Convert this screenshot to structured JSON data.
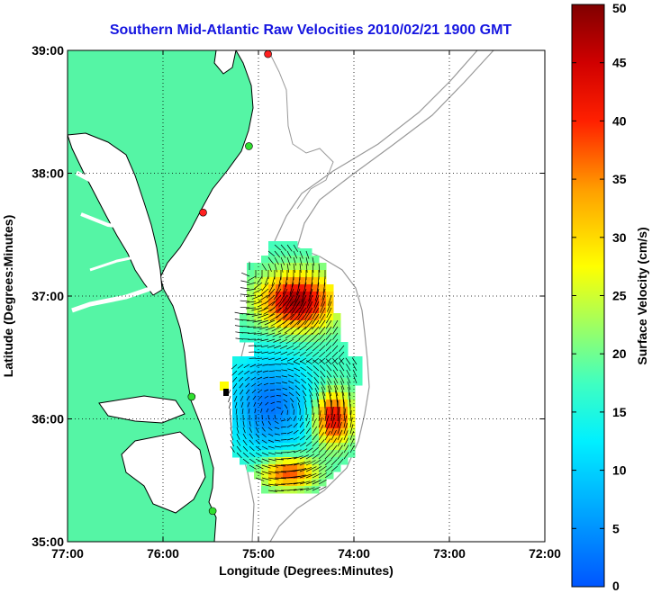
{
  "figure": {
    "title": "Southern Mid-Atlantic Raw Velocities 2010/02/21 1900 GMT",
    "xlabel": "Longitude (Degrees:Minutes)",
    "ylabel": "Latitude (Degrees:Minutes)",
    "colorbar_label": "Surface Velocity (cm/s)"
  },
  "axes": {
    "lon_range": [
      -77,
      -72
    ],
    "lat_range": [
      35,
      39
    ],
    "x_ticks": [
      {
        "lon": -77,
        "label": "77:00"
      },
      {
        "lon": -76,
        "label": "76:00"
      },
      {
        "lon": -75,
        "label": "75:00"
      },
      {
        "lon": -74,
        "label": "74:00"
      },
      {
        "lon": -73,
        "label": "73:00"
      },
      {
        "lon": -72,
        "label": "72:00"
      }
    ],
    "y_ticks": [
      {
        "lat": 35,
        "label": "35:00"
      },
      {
        "lat": 36,
        "label": "36:00"
      },
      {
        "lat": 37,
        "label": "37:00"
      },
      {
        "lat": 38,
        "label": "38:00"
      },
      {
        "lat": 39,
        "label": "39:00"
      }
    ],
    "grid": "dotted"
  },
  "colorbar": {
    "range": [
      0,
      50
    ],
    "ticks": [
      {
        "value": 0,
        "label": "0"
      },
      {
        "value": 5,
        "label": "5"
      },
      {
        "value": 10,
        "label": "10"
      },
      {
        "value": 15,
        "label": "15"
      },
      {
        "value": 20,
        "label": "20"
      },
      {
        "value": 25,
        "label": "25"
      },
      {
        "value": 30,
        "label": "30"
      },
      {
        "value": 35,
        "label": "35"
      },
      {
        "value": 40,
        "label": "40"
      },
      {
        "value": 45,
        "label": "45"
      },
      {
        "value": 50,
        "label": "50"
      }
    ],
    "colormap": "jet"
  },
  "colors": {
    "land": "#55f5a5",
    "coastline": "#000000",
    "bathymetry": "#999999",
    "title": "#1515e0"
  },
  "stations": [
    {
      "lon": -74.9,
      "lat": 38.97,
      "color": "#ff2020"
    },
    {
      "lon": -75.1,
      "lat": 38.22,
      "color": "#30e030"
    },
    {
      "lon": -75.58,
      "lat": 37.68,
      "color": "#ff2020"
    },
    {
      "lon": -75.7,
      "lat": 36.18,
      "color": "#30e030"
    },
    {
      "lon": -75.48,
      "lat": 35.25,
      "color": "#30e030"
    }
  ],
  "velocity_field": {
    "lon_range": [
      -75.6,
      -73.9
    ],
    "lat_range": [
      35.4,
      37.45
    ],
    "speed_range_cm_s": [
      0,
      50
    ]
  }
}
